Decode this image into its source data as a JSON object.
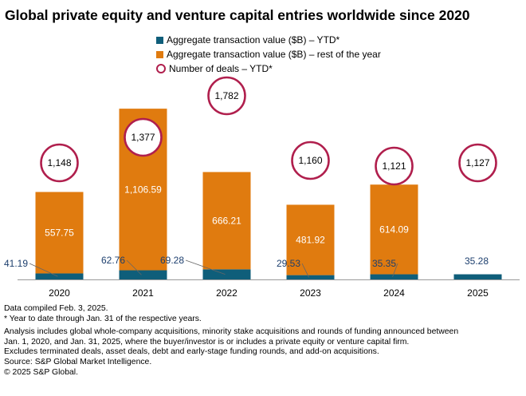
{
  "title": "Global private equity and venture capital entries worldwide since 2020",
  "legend": {
    "ytd": "Aggregate transaction value ($B) – YTD*",
    "rest": "Aggregate transaction value ($B) – rest of the year",
    "deals": "Number of deals – YTD*"
  },
  "colors": {
    "ytd": "#0f5e7a",
    "rest": "#e07b0f",
    "deals_ring": "#b01f4d",
    "axis": "#999999",
    "label_ytd": "#1d3f6e"
  },
  "chart_data": {
    "type": "bar",
    "stacked": true,
    "title": "Global private equity and venture capital entries worldwide since 2020",
    "categories": [
      "2020",
      "2021",
      "2022",
      "2023",
      "2024",
      "2025"
    ],
    "series": [
      {
        "name": "Aggregate transaction value ($B) – YTD*",
        "values": [
          41.19,
          62.76,
          69.28,
          29.53,
          35.35,
          35.28
        ],
        "labels": [
          "41.19",
          "62.76",
          "69.28",
          "29.53",
          "35.35",
          "35.28"
        ]
      },
      {
        "name": "Aggregate transaction value ($B) – rest of the year",
        "values": [
          557.75,
          1106.59,
          666.21,
          481.92,
          614.09,
          null
        ],
        "labels": [
          "557.75",
          "1,106.59",
          "666.21",
          "481.92",
          "614.09",
          ""
        ]
      }
    ],
    "deals": {
      "name": "Number of deals – YTD*",
      "values": [
        1148,
        1377,
        1782,
        1160,
        1121,
        1127
      ],
      "labels": [
        "1,148",
        "1,377",
        "1,782",
        "1,160",
        "1,121",
        "1,127"
      ]
    },
    "ylim": [
      0,
      1170
    ]
  },
  "notes": {
    "compiled": "Data compiled Feb. 3, 2025.",
    "ytd_note": "* Year to date through Jan. 31 of the respective years.",
    "analysis_1": "Analysis includes global whole-company acquisitions, minority stake acquisitions and rounds of funding announced between",
    "analysis_2": "Jan. 1, 2020, and Jan. 31, 2025, where the buyer/investor is or includes a private equity or venture capital firm.",
    "excludes": "Excludes terminated deals, asset deals, debt and early-stage funding rounds, and add-on acquisitions.",
    "source": "Source: S&P Global Market Intelligence.",
    "copyright": "© 2025 S&P Global."
  }
}
